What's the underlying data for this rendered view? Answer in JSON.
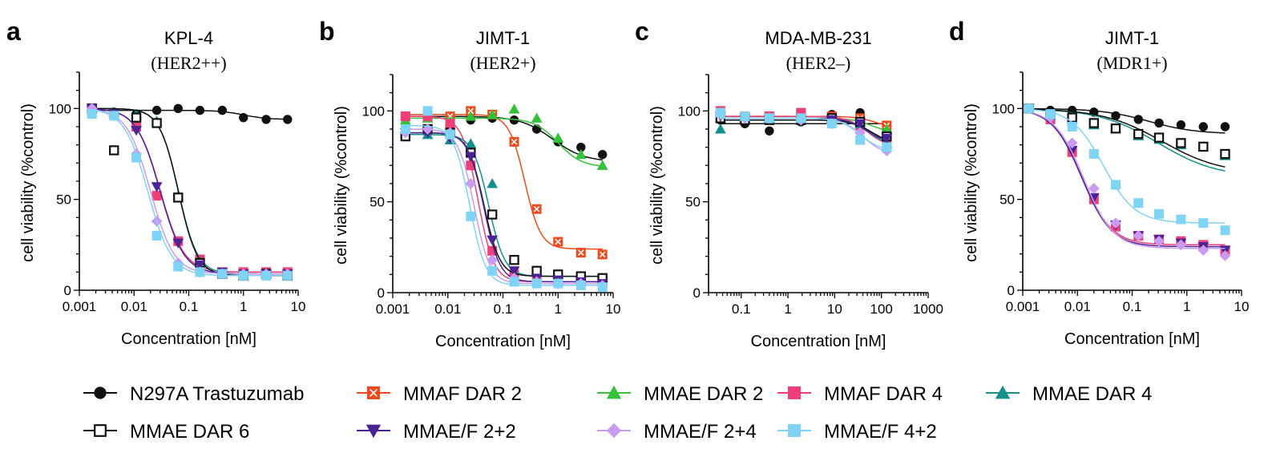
{
  "series_styles": [
    {
      "name": "N297A Trastuzumab",
      "color": "#111111",
      "marker": "circle"
    },
    {
      "name": "MMAF DAR 2",
      "color": "#f04a1c",
      "marker": "square-x"
    },
    {
      "name": "MMAE DAR 2",
      "color": "#33c23a",
      "marker": "triangle-up"
    },
    {
      "name": "MMAF DAR 4",
      "color": "#ee3f78",
      "marker": "square"
    },
    {
      "name": "MMAE DAR 4",
      "color": "#138f8c",
      "marker": "triangle-up"
    },
    {
      "name": "MMAE DAR 6",
      "color": "#111111",
      "marker": "square-open"
    },
    {
      "name": "MMAE/F 2+2",
      "color": "#4a2296",
      "marker": "triangle-down"
    },
    {
      "name": "MMAE/F 2+4",
      "color": "#c89af0",
      "marker": "diamond"
    },
    {
      "name": "MMAE/F 4+2",
      "color": "#7fd3f5",
      "marker": "square"
    }
  ],
  "chart_data": [
    {
      "type": "scatter",
      "panel": "a",
      "title": "KPL-4",
      "subtitle": "(HER2++)",
      "xlabel": "Concentration [nM]",
      "ylabel": "cell viability (%control)",
      "xscale": "log",
      "xlim": [
        0.001,
        10
      ],
      "ylim": [
        0,
        120
      ],
      "xticks": [
        "0.001",
        "0.01",
        "0.1",
        "1",
        "10"
      ],
      "yticks": [
        "0",
        "50",
        "100"
      ],
      "x": [
        0.0017,
        0.0043,
        0.011,
        0.026,
        0.064,
        0.16,
        0.41,
        1.0,
        2.6,
        6.4
      ],
      "series": [
        {
          "name": "N297A Trastuzumab",
          "values": [
            100,
            98,
            97,
            99,
            100,
            99,
            99,
            95,
            94,
            94
          ],
          "fit": {
            "top": 99,
            "bottom": 94,
            "ec50": 1.0,
            "hill": 2
          }
        },
        {
          "name": "MMAF DAR 4",
          "values": [
            100,
            97,
            90,
            52,
            27,
            17,
            10,
            10,
            10,
            10
          ],
          "fit": {
            "top": 100,
            "bottom": 10,
            "ec50": 0.03,
            "hill": 2
          }
        },
        {
          "name": "MMAE DAR 4",
          "values": [
            100,
            98,
            97,
            93,
            52,
            15,
            9,
            8,
            9,
            8
          ],
          "fit": {
            "top": 100,
            "bottom": 9,
            "ec50": 0.065,
            "hill": 2.5
          }
        },
        {
          "name": "MMAE DAR 6",
          "values": [
            100,
            77,
            95,
            92,
            51,
            15,
            9,
            8,
            9,
            8
          ],
          "fit": {
            "top": 100,
            "bottom": 8,
            "ec50": 0.065,
            "hill": 2.5
          }
        },
        {
          "name": "MMAE/F 2+2",
          "values": [
            100,
            97,
            88,
            57,
            26,
            14,
            10,
            9,
            9,
            9
          ],
          "fit": {
            "top": 100,
            "bottom": 9,
            "ec50": 0.03,
            "hill": 2
          }
        },
        {
          "name": "MMAE/F 2+4",
          "values": [
            100,
            96,
            75,
            38,
            15,
            10,
            9,
            9,
            9,
            9
          ],
          "fit": {
            "top": 100,
            "bottom": 9,
            "ec50": 0.02,
            "hill": 2
          }
        },
        {
          "name": "MMAE/F 4+2",
          "values": [
            97,
            96,
            73,
            30,
            13,
            10,
            9,
            8,
            8,
            8
          ],
          "fit": {
            "top": 100,
            "bottom": 8,
            "ec50": 0.018,
            "hill": 2
          }
        }
      ]
    },
    {
      "type": "scatter",
      "panel": "b",
      "title": "JIMT-1",
      "subtitle": "(HER2+)",
      "xlabel": "Concentration [nM]",
      "ylabel": "cell viability (%control)",
      "xscale": "log",
      "xlim": [
        0.001,
        10
      ],
      "ylim": [
        0,
        120
      ],
      "xticks": [
        "0.001",
        "0.01",
        "0.1",
        "1",
        "10"
      ],
      "yticks": [
        "0",
        "50",
        "100"
      ],
      "x": [
        0.0017,
        0.0043,
        0.011,
        0.026,
        0.064,
        0.16,
        0.41,
        1.0,
        2.6,
        6.4
      ],
      "series": [
        {
          "name": "N297A Trastuzumab",
          "values": [
            86,
            88,
            92,
            95,
            96,
            95,
            90,
            83,
            80,
            76
          ],
          "fit": {
            "top": 97,
            "bottom": 72,
            "ec50": 0.8,
            "hill": 1.5
          }
        },
        {
          "name": "MMAF DAR 2",
          "values": [
            97,
            97,
            97,
            100,
            98,
            83,
            46,
            28,
            22,
            21
          ],
          "fit": {
            "top": 98,
            "bottom": 24,
            "ec50": 0.25,
            "hill": 3
          }
        },
        {
          "name": "MMAE DAR 2",
          "values": [
            95,
            96,
            94,
            97,
            98,
            101,
            96,
            85,
            76,
            70
          ],
          "fit": {
            "top": 96,
            "bottom": 69,
            "ec50": 1.0,
            "hill": 2
          }
        },
        {
          "name": "MMAF DAR 4",
          "values": [
            97,
            97,
            93,
            70,
            23,
            10,
            8,
            7,
            6,
            5
          ],
          "fit": {
            "top": 97,
            "bottom": 6,
            "ec50": 0.035,
            "hill": 3
          }
        },
        {
          "name": "MMAE DAR 4",
          "values": [
            88,
            87,
            84,
            82,
            60,
            18,
            12,
            10,
            9,
            8
          ],
          "fit": {
            "top": 87,
            "bottom": 9,
            "ec50": 0.055,
            "hill": 3
          }
        },
        {
          "name": "MMAE DAR 6",
          "values": [
            86,
            90,
            88,
            77,
            43,
            18,
            12,
            10,
            9,
            8
          ],
          "fit": {
            "top": 88,
            "bottom": 9,
            "ec50": 0.045,
            "hill": 3
          }
        },
        {
          "name": "MMAE/F 2+2",
          "values": [
            88,
            88,
            85,
            75,
            29,
            12,
            8,
            7,
            6,
            5
          ],
          "fit": {
            "top": 88,
            "bottom": 6,
            "ec50": 0.045,
            "hill": 3
          }
        },
        {
          "name": "MMAE/F 2+4",
          "values": [
            88,
            90,
            88,
            60,
            18,
            8,
            6,
            5,
            5,
            4
          ],
          "fit": {
            "top": 90,
            "bottom": 5,
            "ec50": 0.03,
            "hill": 3
          }
        },
        {
          "name": "MMAE/F 4+2",
          "values": [
            90,
            100,
            87,
            42,
            12,
            6,
            5,
            5,
            4,
            3
          ],
          "fit": {
            "top": 92,
            "bottom": 4,
            "ec50": 0.025,
            "hill": 3
          }
        }
      ]
    },
    {
      "type": "scatter",
      "panel": "c",
      "title": "MDA-MB-231",
      "subtitle": "(HER2–)",
      "xlabel": "Concentration [nM]",
      "ylabel": "cell viability (%control)",
      "xscale": "log",
      "xlim": [
        0.02,
        1000
      ],
      "ylim": [
        0,
        120
      ],
      "xticks": [
        "0.1",
        "1",
        "10",
        "100",
        "1000"
      ],
      "yticks": [
        "0",
        "50",
        "100"
      ],
      "x": [
        0.036,
        0.12,
        0.4,
        1.9,
        8.7,
        35,
        130
      ],
      "series": [
        {
          "name": "N297A Trastuzumab",
          "values": [
            95,
            93,
            89,
            94,
            98,
            99,
            90
          ],
          "fit": {
            "top": 93,
            "bottom": 93,
            "ec50": 10,
            "hill": 1
          }
        },
        {
          "name": "MMAF DAR 2",
          "values": [
            96,
            97,
            97,
            98,
            97,
            96,
            92
          ],
          "fit": {
            "top": 97,
            "bottom": 90,
            "ec50": 80,
            "hill": 2
          }
        },
        {
          "name": "MMAE DAR 2",
          "values": [
            96,
            96,
            95,
            97,
            96,
            94,
            90
          ],
          "fit": {
            "top": 96,
            "bottom": 88,
            "ec50": 60,
            "hill": 2
          }
        },
        {
          "name": "MMAF DAR 4",
          "values": [
            100,
            97,
            97,
            99,
            96,
            92,
            83
          ],
          "fit": {
            "top": 97,
            "bottom": 80,
            "ec50": 50,
            "hill": 2
          }
        },
        {
          "name": "MMAE DAR 4",
          "values": [
            90,
            95,
            96,
            95,
            95,
            93,
            82
          ],
          "fit": {
            "top": 95,
            "bottom": 80,
            "ec50": 60,
            "hill": 2
          }
        },
        {
          "name": "MMAE DAR 6",
          "values": [
            96,
            95,
            95,
            95,
            96,
            94,
            86
          ],
          "fit": {
            "top": 95,
            "bottom": 82,
            "ec50": 60,
            "hill": 2
          }
        },
        {
          "name": "MMAE/F 2+2",
          "values": [
            97,
            96,
            96,
            96,
            95,
            93,
            85
          ],
          "fit": {
            "top": 96,
            "bottom": 82,
            "ec50": 50,
            "hill": 2
          }
        },
        {
          "name": "MMAE/F 2+4",
          "values": [
            98,
            96,
            96,
            95,
            93,
            88,
            78
          ],
          "fit": {
            "top": 96,
            "bottom": 76,
            "ec50": 40,
            "hill": 2
          }
        },
        {
          "name": "MMAE/F 4+2",
          "values": [
            99,
            97,
            96,
            96,
            93,
            84,
            80
          ],
          "fit": {
            "top": 96,
            "bottom": 78,
            "ec50": 35,
            "hill": 2
          }
        }
      ]
    },
    {
      "type": "scatter",
      "panel": "d",
      "title": "JIMT-1",
      "subtitle": "(MDR1+)",
      "xlabel": "Concentration [nM]",
      "ylabel": "cell viability (%control)",
      "xscale": "log",
      "xlim": [
        0.001,
        10
      ],
      "ylim": [
        0,
        120
      ],
      "xticks": [
        "0.001",
        "0.01",
        "0.1",
        "1",
        "10"
      ],
      "yticks": [
        "0",
        "50",
        "100"
      ],
      "x": [
        0.0013,
        0.0032,
        0.008,
        0.02,
        0.05,
        0.13,
        0.31,
        0.78,
        2.0,
        5.0
      ],
      "series": [
        {
          "name": "N297A Trastuzumab",
          "values": [
            100,
            99,
            99,
            98,
            96,
            94,
            92,
            91,
            90,
            90
          ],
          "fit": {
            "top": 100,
            "bottom": 86,
            "ec50": 0.2,
            "hill": 1
          }
        },
        {
          "name": "MMAF DAR 4",
          "values": [
            100,
            94,
            76,
            50,
            35,
            30,
            28,
            27,
            25,
            22
          ],
          "fit": {
            "top": 100,
            "bottom": 25,
            "ec50": 0.012,
            "hill": 1.6
          }
        },
        {
          "name": "MMAE DAR 4",
          "values": [
            100,
            96,
            94,
            91,
            89,
            85,
            83,
            80,
            79,
            74
          ],
          "fit": {
            "top": 100,
            "bottom": 62,
            "ec50": 0.3,
            "hill": 0.8
          }
        },
        {
          "name": "MMAE DAR 6",
          "values": [
            100,
            97,
            95,
            92,
            89,
            86,
            84,
            81,
            79,
            75
          ],
          "fit": {
            "top": 100,
            "bottom": 64,
            "ec50": 0.35,
            "hill": 0.8
          }
        },
        {
          "name": "MMAE/F 2+2",
          "values": [
            100,
            95,
            77,
            51,
            36,
            30,
            28,
            26,
            24,
            22
          ],
          "fit": {
            "top": 100,
            "bottom": 24,
            "ec50": 0.012,
            "hill": 1.6
          }
        },
        {
          "name": "MMAE/F 2+4",
          "values": [
            100,
            95,
            81,
            56,
            37,
            30,
            27,
            25,
            22,
            19
          ],
          "fit": {
            "top": 100,
            "bottom": 23,
            "ec50": 0.013,
            "hill": 1.6
          }
        },
        {
          "name": "MMAE/F 4+2",
          "values": [
            100,
            97,
            90,
            75,
            58,
            48,
            42,
            39,
            37,
            33
          ],
          "fit": {
            "top": 100,
            "bottom": 37,
            "ec50": 0.03,
            "hill": 1.5
          }
        }
      ]
    }
  ]
}
